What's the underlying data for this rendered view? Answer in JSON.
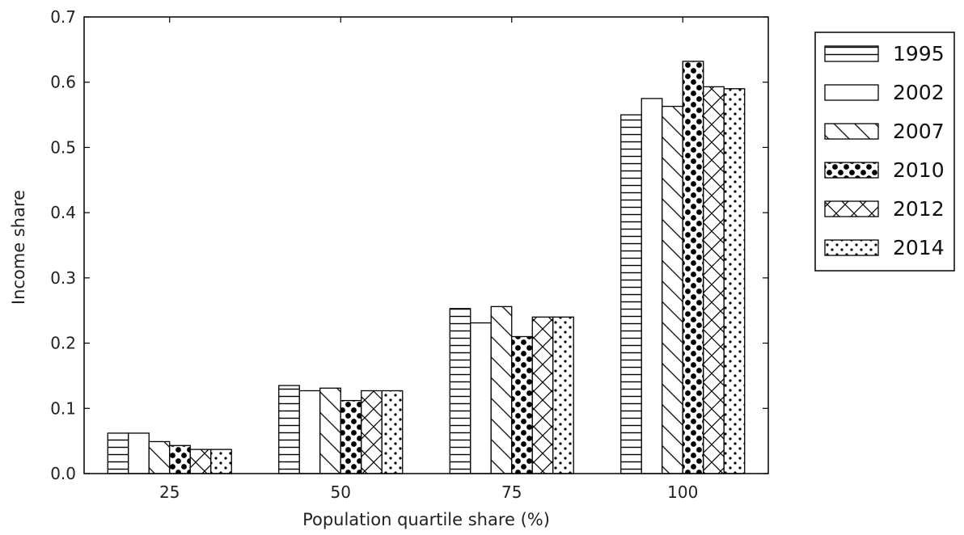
{
  "chart_data": {
    "type": "bar",
    "title": "",
    "xlabel": "Population quartile share (%)",
    "ylabel": "Income share",
    "categories": [
      "25",
      "50",
      "75",
      "100"
    ],
    "ylim": [
      0.0,
      0.7
    ],
    "yticks": [
      "0.0",
      "0.1",
      "0.2",
      "0.3",
      "0.4",
      "0.5",
      "0.6",
      "0.7"
    ],
    "grid": false,
    "legend_position": "outside-right-top",
    "series": [
      {
        "name": "1995",
        "pattern": "horizontal-lines",
        "values": [
          0.062,
          0.135,
          0.253,
          0.55
        ]
      },
      {
        "name": "2002",
        "pattern": "none",
        "values": [
          0.062,
          0.127,
          0.231,
          0.575
        ]
      },
      {
        "name": "2007",
        "pattern": "diagonal-lines",
        "values": [
          0.049,
          0.131,
          0.256,
          0.563
        ]
      },
      {
        "name": "2010",
        "pattern": "large-dots",
        "values": [
          0.043,
          0.112,
          0.21,
          0.632
        ]
      },
      {
        "name": "2012",
        "pattern": "crosshatch",
        "values": [
          0.037,
          0.127,
          0.24,
          0.593
        ]
      },
      {
        "name": "2014",
        "pattern": "small-dots",
        "values": [
          0.037,
          0.127,
          0.24,
          0.59
        ]
      }
    ]
  }
}
